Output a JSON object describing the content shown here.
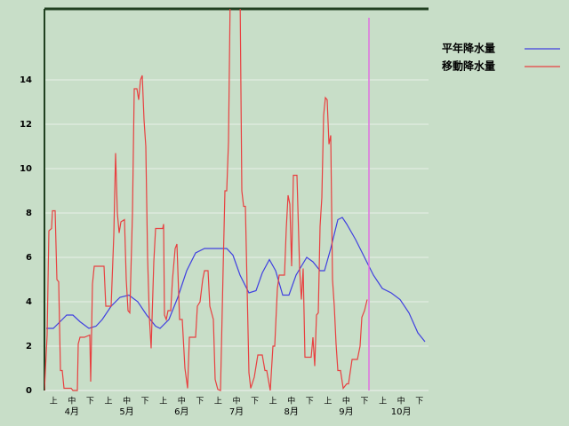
{
  "chart_data": {
    "type": "line",
    "categories": [
      "上",
      "中",
      "下",
      "上",
      "中",
      "下",
      "上",
      "中",
      "下",
      "上",
      "中",
      "下",
      "上",
      "中",
      "下",
      "上",
      "中",
      "下",
      "上",
      "中",
      "下"
    ],
    "months": [
      "4月",
      "5月",
      "6月",
      "7月",
      "8月",
      "9月",
      "10月"
    ],
    "xlim": [
      0,
      216
    ],
    "ylim": [
      0,
      17.2
    ],
    "yticks": [
      0,
      2,
      4,
      6,
      8,
      10,
      12,
      14
    ],
    "grid": true,
    "marker_x": 182.5,
    "marker_color": "#e070e0",
    "legend": "right",
    "series": [
      {
        "name": "平年降水量",
        "color": "#4040e0",
        "x": [
          1,
          5,
          10,
          12.5,
          16,
          20,
          25,
          29,
          32.5,
          37.5,
          42.5,
          47.5,
          52.5,
          57.5,
          62.5,
          65,
          70,
          75,
          80,
          85,
          90,
          95,
          102.5,
          106,
          110,
          115,
          119,
          122.5,
          126.5,
          130,
          134,
          137.5,
          141.5,
          147.5,
          151,
          155,
          157.5,
          161,
          165,
          167.5,
          170,
          175,
          180,
          185,
          190,
          195,
          200,
          205,
          210,
          214
        ],
        "values": [
          2.8,
          2.8,
          3.2,
          3.4,
          3.4,
          3.1,
          2.8,
          2.9,
          3.2,
          3.8,
          4.2,
          4.3,
          4.0,
          3.4,
          2.9,
          2.8,
          3.2,
          4.2,
          5.4,
          6.2,
          6.4,
          6.4,
          6.4,
          6.1,
          5.2,
          4.4,
          4.5,
          5.3,
          5.9,
          5.4,
          4.3,
          4.3,
          5.2,
          6.0,
          5.8,
          5.4,
          5.4,
          6.4,
          7.7,
          7.8,
          7.5,
          6.8,
          6.0,
          5.2,
          4.6,
          4.4,
          4.1,
          3.5,
          2.6,
          2.2
        ]
      },
      {
        "name": "移動降水量",
        "color": "#e84040",
        "x": [
          0,
          1.5,
          2.5,
          4,
          4.5,
          6,
          7,
          8,
          9,
          10,
          11,
          15,
          16,
          18.5,
          19,
          20,
          22.5,
          25.5,
          26,
          27,
          28,
          33.5,
          34.5,
          37.5,
          39,
          40,
          41,
          42,
          43,
          45,
          46,
          47,
          48,
          49.5,
          50.5,
          52,
          53,
          54,
          55,
          56,
          57,
          58,
          59,
          60,
          61.5,
          62.5,
          66.5,
          67,
          67.5,
          68.5,
          69.5,
          71,
          72,
          73.5,
          74.5,
          76,
          77.5,
          79,
          80.5,
          81.5,
          85,
          86,
          87.5,
          89,
          90,
          92,
          93,
          95,
          96,
          97.5,
          99,
          100.5,
          101.5,
          102.5,
          103.5,
          104.5,
          110,
          111,
          112,
          113,
          115,
          116,
          118,
          120,
          122.5,
          124,
          125,
          127,
          128.5,
          129.5,
          131,
          132,
          135,
          136,
          137,
          138,
          139,
          140,
          142,
          143.5,
          144.5,
          145.5,
          146.5,
          150,
          151,
          152,
          153,
          154,
          155,
          156,
          157,
          158,
          159,
          160,
          161,
          162,
          163,
          164,
          165,
          166.5,
          168,
          170,
          171,
          173,
          176,
          177.5,
          178.5,
          180,
          181.5
        ],
        "values": [
          0,
          2.5,
          7.2,
          7.3,
          8.1,
          8.1,
          5,
          4.9,
          0.9,
          0.9,
          0.1,
          0.1,
          0,
          0,
          2.1,
          2.4,
          2.4,
          2.5,
          0.4,
          4.8,
          5.6,
          5.6,
          3.8,
          3.8,
          7,
          10.7,
          8,
          7.1,
          7.6,
          7.7,
          5.0,
          3.6,
          3.5,
          8,
          13.6,
          13.6,
          13.1,
          14,
          14.2,
          12.2,
          11,
          6,
          3.3,
          1.9,
          5.8,
          7.3,
          7.3,
          7.5,
          3.4,
          3.2,
          3.6,
          3.6,
          5.0,
          6.4,
          6.6,
          3.2,
          3.2,
          1.0,
          0.1,
          2.4,
          2.4,
          3.8,
          4.0,
          5.0,
          5.4,
          5.4,
          3.8,
          3.2,
          0.5,
          0.05,
          0,
          5.5,
          9,
          9,
          11.2,
          18,
          18,
          9,
          8.3,
          8.3,
          0.8,
          0.1,
          0.6,
          1.6,
          1.6,
          0.9,
          0.9,
          0,
          2,
          2,
          4.6,
          5.2,
          5.2,
          7.3,
          8.8,
          8.4,
          5.6,
          9.7,
          9.7,
          5.5,
          4.1,
          5.5,
          1.5,
          1.5,
          2.4,
          1.1,
          3.4,
          3.5,
          7.4,
          8.7,
          12.4,
          13.2,
          13.1,
          11.1,
          11.5,
          5,
          3.8,
          2.1,
          0.9,
          0.9,
          0.1,
          0.3,
          0.3,
          1.4,
          1.4,
          2.0,
          3.3,
          3.6,
          4.1
        ]
      }
    ]
  }
}
